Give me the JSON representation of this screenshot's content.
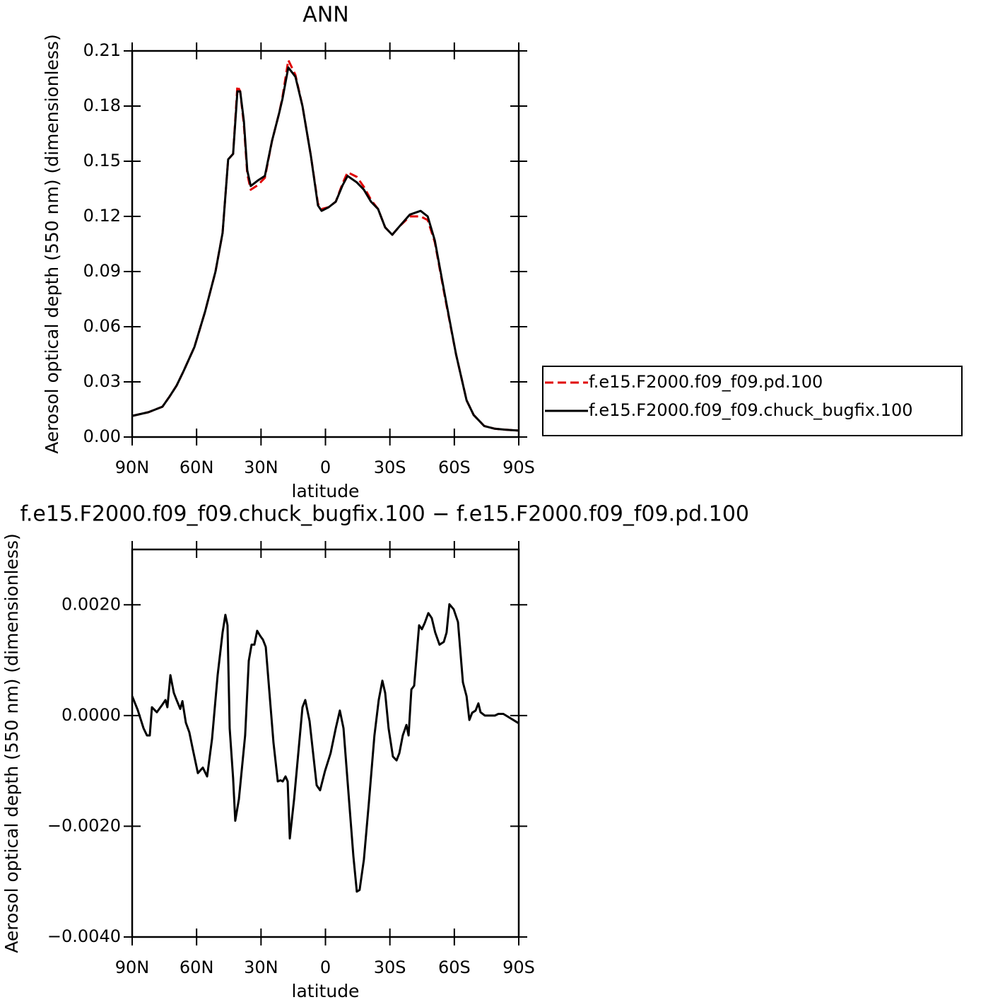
{
  "chart_data": [
    {
      "type": "line",
      "title": "ANN",
      "x_label": "latitude",
      "y_label": "Aerosol optical depth (550 nm) (dimensionless)",
      "x": [
        90,
        82.4,
        75.9,
        72.6,
        69.3,
        66,
        61,
        56.1,
        51.2,
        47.9,
        45.3,
        43,
        41,
        39.7,
        38,
        36.4,
        34.8,
        31.5,
        28.2,
        24.9,
        21.6,
        20,
        17.3,
        14,
        10.7,
        6.8,
        3.5,
        1.8,
        -1.5,
        -4.8,
        -8,
        -10.3,
        -14.6,
        -17.9,
        -21.2,
        -24.5,
        -27.8,
        -31.1,
        -34.4,
        -39.3,
        -44.3,
        -47.6,
        -50.9,
        -55.8,
        -60.8,
        -65.7,
        -69,
        -73.9,
        -78.9,
        -83.8,
        -90
      ],
      "series": [
        {
          "name": "f.e15.F2000.f09_f09.pd.100",
          "color": "#e00000",
          "dash": "dashed",
          "values": [
            0.0115,
            0.0135,
            0.0165,
            0.022,
            0.028,
            0.036,
            0.049,
            0.068,
            0.09,
            0.111,
            0.151,
            0.154,
            0.191,
            0.188,
            0.17,
            0.143,
            0.1345,
            0.137,
            0.141,
            0.161,
            0.176,
            0.185,
            0.205,
            0.197,
            0.18,
            0.153,
            0.127,
            0.124,
            0.125,
            0.128,
            0.138,
            0.144,
            0.1415,
            0.136,
            0.129,
            0.124,
            0.114,
            0.11,
            0.1145,
            0.12,
            0.12,
            0.118,
            0.106,
            0.075,
            0.045,
            0.02,
            0.012,
            0.006,
            0.0045,
            0.004,
            0.0035
          ]
        },
        {
          "name": "f.e15.F2000.f09_f09.chuck_bugfix.100",
          "color": "#000000",
          "dash": "solid",
          "values": [
            0.0115,
            0.0135,
            0.0165,
            0.022,
            0.028,
            0.036,
            0.049,
            0.068,
            0.09,
            0.111,
            0.151,
            0.154,
            0.188,
            0.188,
            0.172,
            0.145,
            0.1365,
            0.1395,
            0.142,
            0.161,
            0.176,
            0.184,
            0.201,
            0.196,
            0.18,
            0.153,
            0.126,
            0.123,
            0.125,
            0.128,
            0.137,
            0.142,
            0.1385,
            0.1345,
            0.128,
            0.124,
            0.114,
            0.11,
            0.1145,
            0.121,
            0.123,
            0.12,
            0.107,
            0.076,
            0.045,
            0.02,
            0.012,
            0.006,
            0.0045,
            0.004,
            0.0035
          ]
        }
      ],
      "xlim": [
        90,
        -90
      ],
      "xticks": [
        {
          "value": 90,
          "label": "90N"
        },
        {
          "value": 60,
          "label": "60N"
        },
        {
          "value": 30,
          "label": "30N"
        },
        0,
        {
          "value": -30,
          "label": "30S"
        },
        {
          "value": -60,
          "label": "60S"
        },
        {
          "value": -90,
          "label": "90S"
        }
      ],
      "ylim": [
        0,
        0.21
      ],
      "yticks": [
        {
          "value": 0,
          "label": "0.00"
        },
        0.03,
        0.06,
        0.09,
        0.12,
        0.15,
        0.18,
        0.21
      ],
      "grid": false,
      "legend": "right"
    },
    {
      "type": "line",
      "title": "f.e15.F2000.f09_f09.chuck_bugfix.100 − f.e15.F2000.f09_f09.pd.100",
      "x_label": "latitude",
      "y_label": "Aerosol optical depth (550 nm) (dimensionless)",
      "x": [
        90,
        87.4,
        84.7,
        83.1,
        81.8,
        80.8,
        78.5,
        75.9,
        74.5,
        73.6,
        72.2,
        70.6,
        69.3,
        67.6,
        66.6,
        65,
        63.4,
        61.7,
        59.4,
        57.1,
        55.1,
        52.8,
        50.2,
        47.9,
        46.6,
        45.6,
        44.6,
        43,
        42,
        40.3,
        37.4,
        35.7,
        34.4,
        33.1,
        31.8,
        30.4,
        29.1,
        27.8,
        26.2,
        24.2,
        22.2,
        20.9,
        19.9,
        18.6,
        17.6,
        16.6,
        14.6,
        13.4,
        10.7,
        9.4,
        7.4,
        4.1,
        2.5,
        0.2,
        -2.4,
        -4.8,
        -6.7,
        -8.4,
        -10.3,
        -13,
        -14.6,
        -15.9,
        -17.9,
        -20.2,
        -22.8,
        -24.8,
        -26.5,
        -27.8,
        -29.4,
        -31.4,
        -33.1,
        -34.4,
        -36,
        -37.7,
        -38.7,
        -40,
        -41.3,
        -43.6,
        -44.9,
        -46.2,
        -47.9,
        -49.5,
        -51.1,
        -53.1,
        -55.1,
        -56.4,
        -57.7,
        -59.7,
        -61.7,
        -64,
        -65.7,
        -67,
        -68.3,
        -69.9,
        -71.2,
        -72.2,
        -74.2,
        -78.9,
        -80.5,
        -82.8,
        -84.1,
        -90
      ],
      "values": [
        0.00035,
        0.0001,
        -0.00023,
        -0.00036,
        -0.00036,
        0.00015,
        6e-05,
        0.0002,
        0.00028,
        0.00015,
        0.00073,
        0.00041,
        0.00028,
        0.00012,
        0.00026,
        -0.00013,
        -0.0003,
        -0.00062,
        -0.00104,
        -0.00094,
        -0.0011,
        -0.00042,
        0.00073,
        0.0015,
        0.00182,
        0.00163,
        -0.00023,
        -0.00113,
        -0.0019,
        -0.00151,
        -0.00036,
        0.00099,
        0.00128,
        0.00128,
        0.00153,
        0.00144,
        0.00137,
        0.00124,
        0.00047,
        -0.00049,
        -0.00119,
        -0.00117,
        -0.00119,
        -0.0011,
        -0.00119,
        -0.00222,
        -0.00151,
        -0.001,
        0.00015,
        0.00028,
        -0.0001,
        -0.00126,
        -0.00135,
        -0.001,
        -0.00068,
        -0.00023,
        9e-05,
        -0.00023,
        -0.00119,
        -0.00254,
        -0.00318,
        -0.00315,
        -0.0026,
        -0.00158,
        -0.00036,
        0.00028,
        0.00063,
        0.00041,
        -0.00023,
        -0.00074,
        -0.00081,
        -0.00068,
        -0.00036,
        -0.00017,
        -0.00036,
        0.00047,
        0.00054,
        0.00163,
        0.00156,
        0.00167,
        0.00185,
        0.00176,
        0.0015,
        0.00128,
        0.00133,
        0.0015,
        0.00201,
        0.00192,
        0.00169,
        0.0006,
        0.00035,
        -8e-05,
        5e-05,
        9e-05,
        0.00022,
        6e-05,
        0,
        0,
        3e-05,
        3e-05,
        0,
        -0.00014
      ],
      "color": "#000000",
      "xlim": [
        90,
        -90
      ],
      "xticks": [
        {
          "value": 90,
          "label": "90N"
        },
        {
          "value": 60,
          "label": "60N"
        },
        {
          "value": 30,
          "label": "30N"
        },
        0,
        {
          "value": -30,
          "label": "30S"
        },
        {
          "value": -60,
          "label": "60S"
        },
        {
          "value": -90,
          "label": "90S"
        }
      ],
      "ylim": [
        -0.004,
        0.003
      ],
      "yticks": [
        {
          "value": -0.004,
          "label": "−0.0040"
        },
        {
          "value": -0.002,
          "label": "−0.0020"
        },
        {
          "value": 0,
          "label": "0.0000"
        },
        {
          "value": 0.002,
          "label": "0.0020"
        }
      ],
      "grid": false
    }
  ]
}
